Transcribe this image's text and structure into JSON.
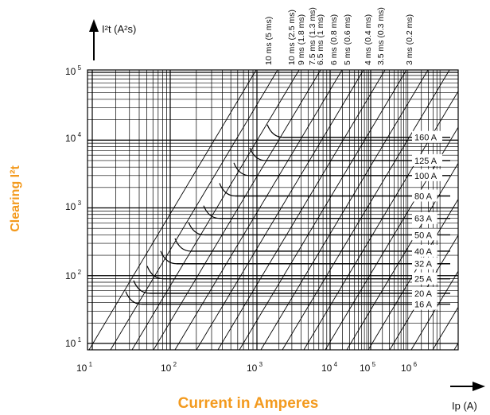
{
  "chart_data": {
    "type": "line",
    "title": "",
    "xlabel": "Current in Amperes",
    "ylabel": "Clearing I²t",
    "x_unit": "Ip (A)",
    "y_unit": "I²t (A²s)",
    "x_scale": "log",
    "y_scale": "log",
    "x_ticks": [
      {
        "base": "10",
        "exp": "1"
      },
      {
        "base": "10",
        "exp": "2"
      },
      {
        "base": "10",
        "exp": "3"
      },
      {
        "base": "10",
        "exp": "4"
      },
      {
        "base": "10",
        "exp": "5"
      },
      {
        "base": "10",
        "exp": "6"
      }
    ],
    "y_ticks": [
      {
        "base": "10",
        "exp": "1"
      },
      {
        "base": "10",
        "exp": "2"
      },
      {
        "base": "10",
        "exp": "3"
      },
      {
        "base": "10",
        "exp": "4"
      },
      {
        "base": "10",
        "exp": "5"
      }
    ],
    "ylim": [
      10,
      100000
    ],
    "grid": true,
    "fuse_ratings": [
      {
        "label": "16 A",
        "i2t": 38
      },
      {
        "label": "20 A",
        "i2t": 55
      },
      {
        "label": "25 A",
        "i2t": 90
      },
      {
        "label": "32 A",
        "i2t": 150
      },
      {
        "label": "40 A",
        "i2t": 230
      },
      {
        "label": "50 A",
        "i2t": 400
      },
      {
        "label": "63 A",
        "i2t": 700
      },
      {
        "label": "80 A",
        "i2t": 1500
      },
      {
        "label": "100 A",
        "i2t": 3000
      },
      {
        "label": "125 A",
        "i2t": 5000
      },
      {
        "label": "160 A",
        "i2t": 11000
      }
    ],
    "time_lines": [
      "10 ms (5 ms)",
      "10 ms (2.5 ms)",
      "9 ms (1.8 ms)",
      "7.5 ms (1.3 ms)",
      "6.5 ms (1 ms)",
      "6 ms (0.8 ms)",
      "5 ms (0.6 ms)",
      "4 ms (0.4 ms)",
      "3.5 ms (0.3 ms)",
      "3 ms (0.2 ms)"
    ]
  }
}
